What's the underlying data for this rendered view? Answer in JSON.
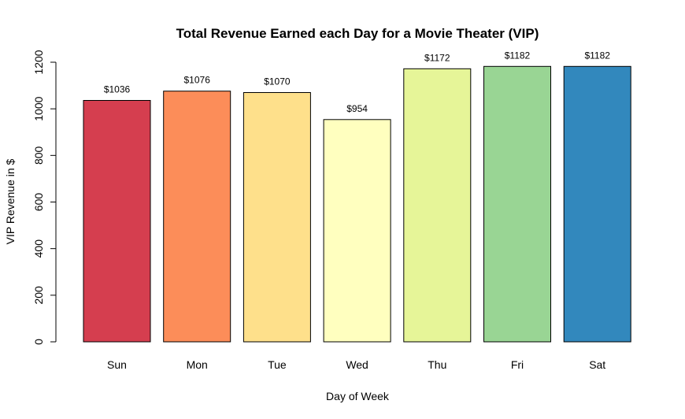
{
  "chart_data": {
    "type": "bar",
    "title": "Total Revenue Earned each Day for a Movie Theater (VIP)",
    "xlabel": "Day of Week",
    "ylabel": "VIP Revenue in $",
    "categories": [
      "Sun",
      "Mon",
      "Tue",
      "Wed",
      "Thu",
      "Fri",
      "Sat"
    ],
    "values": [
      1036,
      1076,
      1070,
      954,
      1172,
      1182,
      1182
    ],
    "data_labels": [
      "$1036",
      "$1076",
      "$1070",
      "$954",
      "$1172",
      "$1182",
      "$1182"
    ],
    "colors": [
      "#D53E4F",
      "#FC8D59",
      "#FEE08B",
      "#FFFFBF",
      "#E6F598",
      "#99D594",
      "#3288BD"
    ],
    "ylim": [
      0,
      1200
    ],
    "yticks": [
      0,
      200,
      400,
      600,
      800,
      1000,
      1200
    ],
    "grid": false,
    "legend": "none"
  }
}
